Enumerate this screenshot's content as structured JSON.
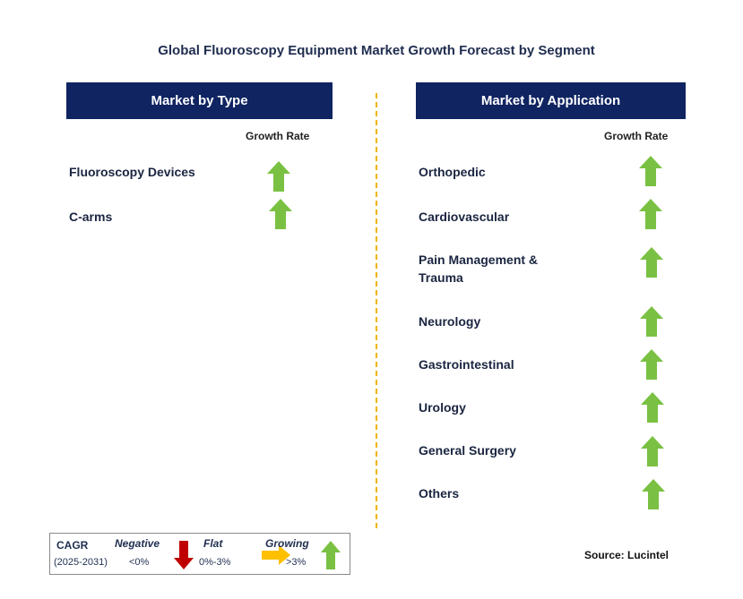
{
  "title": "Global Fluoroscopy Equipment Market Growth Forecast by Segment",
  "left_panel": {
    "header": "Market by Type",
    "growth_label": "Growth Rate",
    "items": [
      {
        "label": "Fluoroscopy Devices",
        "trend": "growing"
      },
      {
        "label": "C-arms",
        "trend": "growing"
      }
    ]
  },
  "right_panel": {
    "header": "Market by Application",
    "growth_label": "Growth Rate",
    "items": [
      {
        "label": "Orthopedic",
        "trend": "growing"
      },
      {
        "label": "Cardiovascular",
        "trend": "growing"
      },
      {
        "label": "Pain Management &",
        "label2": "Trauma",
        "trend": "growing"
      },
      {
        "label": "Neurology",
        "trend": "growing"
      },
      {
        "label": "Gastrointestinal",
        "trend": "growing"
      },
      {
        "label": "Urology",
        "trend": "growing"
      },
      {
        "label": "General Surgery",
        "trend": "growing"
      },
      {
        "label": "Others",
        "trend": "growing"
      }
    ]
  },
  "legend": {
    "cagr": "CAGR",
    "period": "(2025-2031)",
    "negative": "Negative",
    "negative_range": "<0%",
    "flat": "Flat",
    "flat_range": "0%-3%",
    "growing": "Growing",
    "growing_range": ">3%"
  },
  "source": "Source: Lucintel",
  "colors": {
    "header_bg": "#0f2461",
    "arrow_up": "#7ac143",
    "arrow_down": "#c00000",
    "arrow_flat": "#ffc000",
    "divider": "#f0b400"
  },
  "icons": {
    "growing": "green-up-arrow-icon",
    "negative": "red-down-arrow-icon",
    "flat": "yellow-right-arrow-icon"
  }
}
